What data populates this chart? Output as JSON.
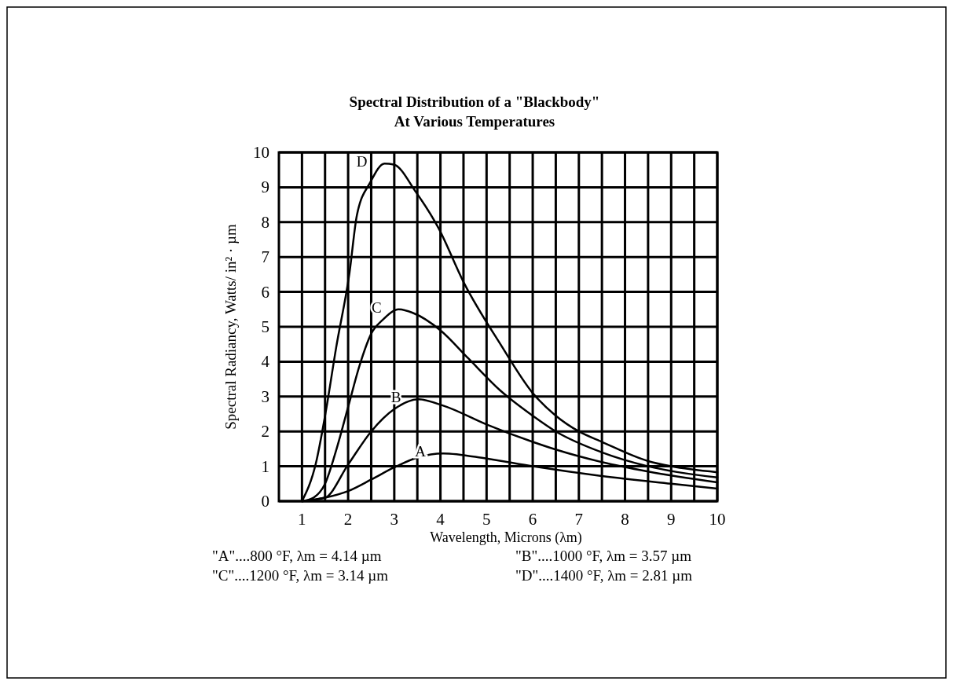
{
  "chart_data": {
    "type": "line",
    "title": "Spectral Distribution of a \"Blackbody\"\nAt Various Temperatures",
    "xlabel": "Wavelength, Microns (λm)",
    "ylabel": "Spectral Radiancy,  Watts/ in² · µm",
    "xlim": [
      0.5,
      10
    ],
    "ylim": [
      0,
      10
    ],
    "xticks": [
      1,
      {
        "value": 1.5,
        "label": null
      },
      2,
      {
        "value": 2.5,
        "label": null
      },
      3,
      {
        "value": 3.5,
        "label": null
      },
      4,
      {
        "value": 4.5,
        "label": null
      },
      5,
      {
        "value": 5.5,
        "label": null
      },
      6,
      {
        "value": 6.5,
        "label": null
      },
      7,
      {
        "value": 7.5,
        "label": null
      },
      8,
      {
        "value": 8.5,
        "label": null
      },
      9,
      {
        "value": 9.5,
        "label": null
      },
      10
    ],
    "yticks": [
      0,
      1,
      2,
      3,
      4,
      5,
      6,
      7,
      8,
      9,
      10
    ],
    "grid": true,
    "marker": "none",
    "line_style": "solid",
    "series": [
      {
        "name": "A",
        "color": "#000000",
        "x": [
          1.0,
          1.5,
          2.0,
          2.5,
          3.0,
          3.5,
          4.06,
          5.0,
          6.0,
          7.5,
          9.0,
          10.0
        ],
        "values": [
          0,
          0.1,
          0.29,
          0.62,
          0.97,
          1.25,
          1.37,
          1.22,
          1.0,
          0.72,
          0.5,
          0.36
        ]
      },
      {
        "name": "B",
        "color": "#000000",
        "x": [
          1.0,
          1.5,
          2.0,
          2.5,
          3.0,
          3.52,
          4.06,
          5.0,
          6.0,
          6.5,
          7.5,
          8.5,
          10.0
        ],
        "values": [
          0,
          0.1,
          1.05,
          2.0,
          2.64,
          2.92,
          2.74,
          2.2,
          1.7,
          1.48,
          1.12,
          0.85,
          0.54
        ]
      },
      {
        "name": "C",
        "color": "#000000",
        "x": [
          1.0,
          1.25,
          1.5,
          1.75,
          2.0,
          2.25,
          2.5,
          2.75,
          3.1,
          3.4,
          4.0,
          4.6,
          5.3,
          6.0,
          6.5,
          7.5,
          8.5,
          10.0
        ],
        "values": [
          0,
          0.1,
          0.5,
          1.5,
          2.7,
          3.9,
          4.8,
          5.2,
          5.5,
          5.4,
          4.9,
          4.1,
          3.17,
          2.45,
          2.0,
          1.4,
          1.0,
          0.68
        ]
      },
      {
        "name": "D",
        "color": "#000000",
        "x": [
          1.0,
          1.3,
          1.52,
          1.74,
          2.03,
          2.19,
          2.48,
          2.79,
          2.99,
          3.47,
          3.95,
          4.51,
          5.3,
          6.0,
          6.5,
          7.0,
          7.5,
          8.5,
          9.0,
          10.0
        ],
        "values": [
          0,
          1.08,
          2.6,
          4.4,
          6.55,
          8.2,
          9.14,
          9.68,
          9.65,
          8.86,
          7.85,
          6.26,
          4.5,
          3.1,
          2.45,
          2.0,
          1.7,
          1.15,
          1.0,
          0.83
        ]
      }
    ],
    "annotations": [
      "\"A\"....800 °F,  λm = 4.14 µm",
      "\"B\"....1000 °F,  λm = 3.57 µm",
      "\"C\"....1200 °F,  λm = 3.14 µm",
      "\"D\"....1400 °F,  λm = 2.81 µm"
    ]
  }
}
